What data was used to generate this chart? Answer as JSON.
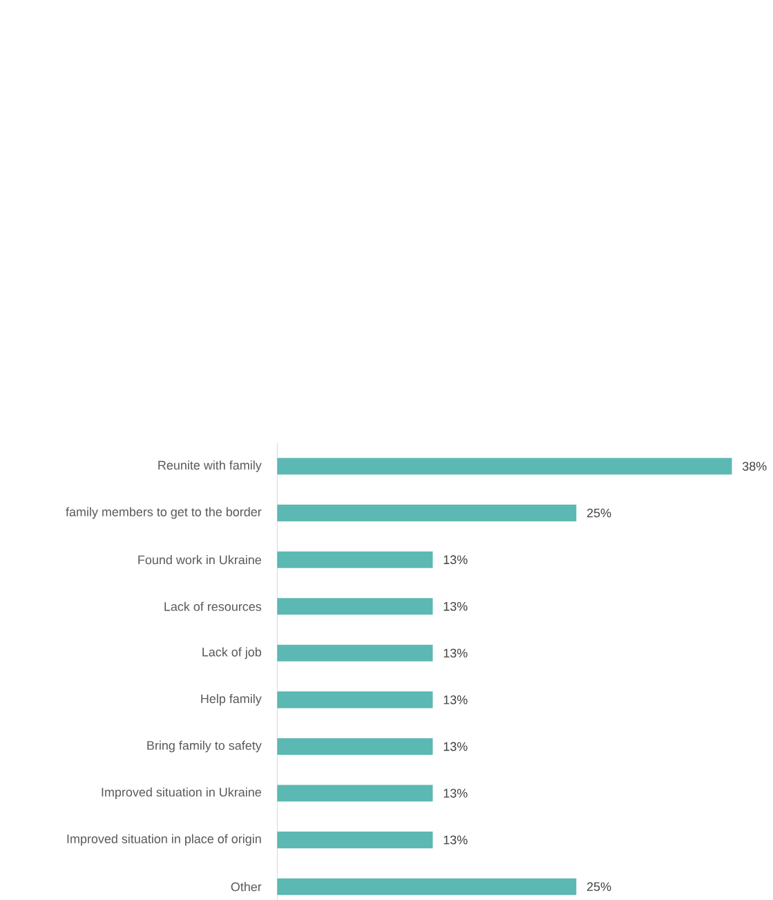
{
  "chart_data": {
    "type": "bar",
    "orientation": "horizontal",
    "categories": [
      "Reunite with family",
      "family members to get to the border",
      "Found work in Ukraine",
      "Lack of resources",
      "Lack of job",
      "Help family",
      "Bring family to safety",
      "Improved situation in Ukraine",
      "Improved situation in place of origin",
      "Other"
    ],
    "values": [
      38,
      25,
      13,
      13,
      13,
      13,
      13,
      13,
      13,
      25
    ],
    "value_labels": [
      "38%",
      "25%",
      "13%",
      "13%",
      "13%",
      "13%",
      "13%",
      "13%",
      "13%",
      "25%"
    ],
    "color": "#5cb8b2"
  }
}
